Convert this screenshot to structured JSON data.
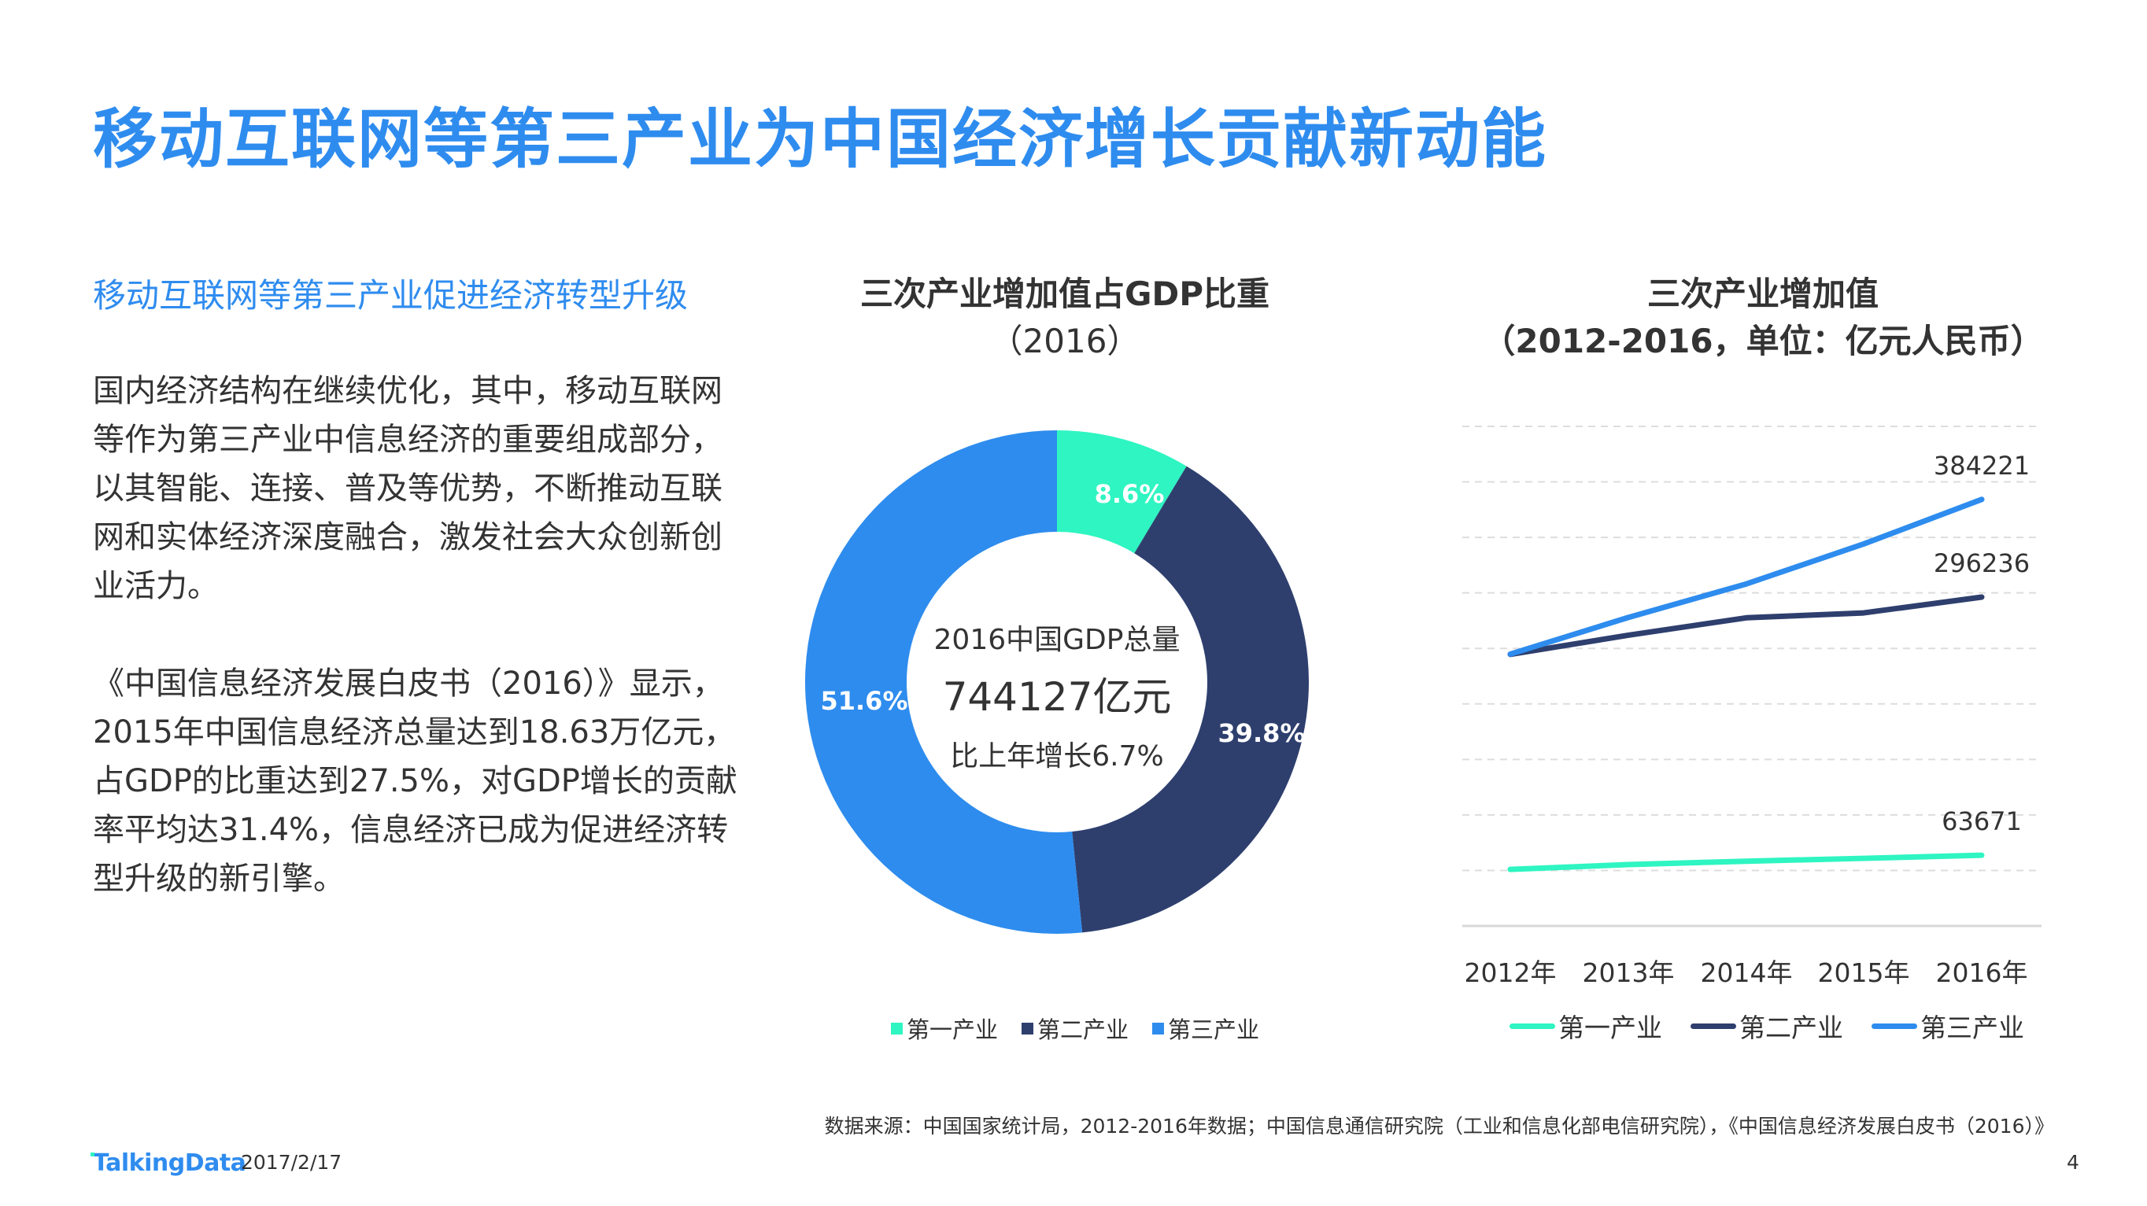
{
  "slide": {
    "title": "移动互联网等第三产业为中国经济增长贡献新动能",
    "section_heading": "移动互联网等第三产业促进经济转型升级",
    "paragraphs": [
      "国内经济结构在继续优化，其中，移动互联网等作为第三产业中信息经济的重要组成部分，以其智能、连接、普及等优势，不断推动互联网和实体经济深度融合，激发社会大众创新创业活力。",
      "《中国信息经济发展白皮书（2016）》显示，2015年中国信息经济总量达到18.63万亿元，占GDP的比重达到27.5%，对GDP增长的贡献率平均达31.4%，信息经济已成为促进经济转型升级的新引擎。"
    ],
    "source_note": "数据来源：中国国家统计局，2012-2016年数据；中国信息通信研究院（工业和信息化部电信研究院），《中国信息经济发展白皮书（2016）》",
    "footer": {
      "logo_text": "TalkingData",
      "date": "2017/2/17",
      "page_number": "4"
    }
  },
  "colors": {
    "accent_blue": "#2f8cef",
    "primary_industry": "#2ef5c1",
    "secondary_industry": "#2e3f6e",
    "tertiary_industry": "#2e8cee",
    "grid": "#dddddd",
    "text": "#333333"
  },
  "donut": {
    "title_line1": "三次产业增加值占GDP比重",
    "title_line2": "（2016）",
    "center_line1": "2016中国GDP总量",
    "center_line2": "744127亿元",
    "center_line3": "比上年增长6.7%",
    "slice_labels": [
      "8.6%",
      "39.8%",
      "51.6%"
    ],
    "legend": [
      "第一产业",
      "第二产业",
      "第三产业"
    ]
  },
  "line": {
    "title_line1": "三次产业增加值",
    "title_line2": "（2012-2016，单位：亿元人民币）",
    "x_labels": [
      "2012年",
      "2013年",
      "2014年",
      "2015年",
      "2016年"
    ],
    "end_labels": [
      "63671",
      "296236",
      "384221"
    ],
    "legend": [
      "第一产业",
      "第二产业",
      "第三产业"
    ]
  },
  "chart_data": [
    {
      "type": "pie",
      "title": "三次产业增加值占GDP比重（2016）",
      "categories": [
        "第一产业",
        "第二产业",
        "第三产业"
      ],
      "values": [
        8.6,
        39.8,
        51.6
      ],
      "unit": "%",
      "donut": true,
      "center_text": [
        "2016中国GDP总量",
        "744127亿元",
        "比上年增长6.7%"
      ],
      "colors": [
        "#2ef5c1",
        "#2e3f6e",
        "#2e8cee"
      ],
      "legend_position": "bottom"
    },
    {
      "type": "line",
      "title": "三次产业增加值（2012-2016，单位：亿元人民币）",
      "categories": [
        "2012年",
        "2013年",
        "2014年",
        "2015年",
        "2016年"
      ],
      "series": [
        {
          "name": "第一产业",
          "values": [
            50900,
            55300,
            58300,
            60900,
            63671
          ],
          "color": "#2ef5c1"
        },
        {
          "name": "第二产业",
          "values": [
            244600,
            261900,
            277600,
            282000,
            296236
          ],
          "color": "#2e3f6e"
        },
        {
          "name": "第三产业",
          "values": [
            244900,
            277900,
            308100,
            344100,
            384221
          ],
          "color": "#2e8cee"
        }
      ],
      "xlabel": "",
      "ylabel": "亿元人民币",
      "ylim": [
        0,
        450000
      ],
      "grid": true,
      "y_axis_visible": false,
      "data_labels": "last point only",
      "legend_position": "bottom"
    }
  ]
}
